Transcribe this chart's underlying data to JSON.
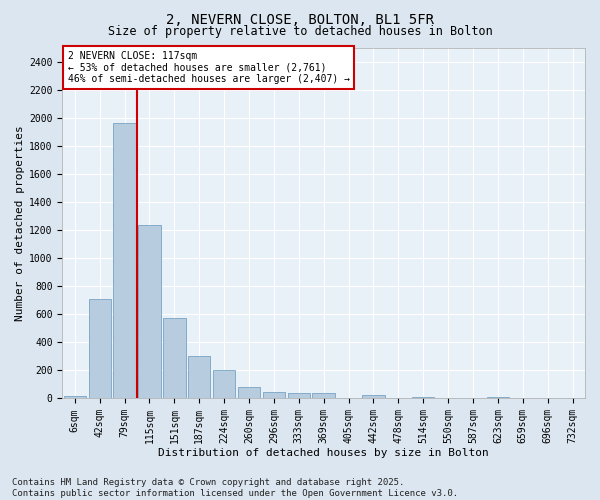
{
  "title_line1": "2, NEVERN CLOSE, BOLTON, BL1 5FR",
  "title_line2": "Size of property relative to detached houses in Bolton",
  "xlabel": "Distribution of detached houses by size in Bolton",
  "ylabel": "Number of detached properties",
  "categories": [
    "6sqm",
    "42sqm",
    "79sqm",
    "115sqm",
    "151sqm",
    "187sqm",
    "224sqm",
    "260sqm",
    "296sqm",
    "333sqm",
    "369sqm",
    "405sqm",
    "442sqm",
    "478sqm",
    "514sqm",
    "550sqm",
    "587sqm",
    "623sqm",
    "659sqm",
    "696sqm",
    "732sqm"
  ],
  "values": [
    15,
    710,
    1960,
    1235,
    575,
    305,
    205,
    80,
    45,
    35,
    35,
    0,
    25,
    0,
    12,
    0,
    0,
    12,
    0,
    0,
    0
  ],
  "bar_color": "#b8ccdf",
  "bar_edge_color": "#6699bb",
  "vline_color": "#cc0000",
  "annotation_text": "2 NEVERN CLOSE: 117sqm\n← 53% of detached houses are smaller (2,761)\n46% of semi-detached houses are larger (2,407) →",
  "annotation_box_facecolor": "#ffffff",
  "annotation_box_edgecolor": "#cc0000",
  "ylim": [
    0,
    2500
  ],
  "yticks": [
    0,
    200,
    400,
    600,
    800,
    1000,
    1200,
    1400,
    1600,
    1800,
    2000,
    2200,
    2400
  ],
  "footer_line1": "Contains HM Land Registry data © Crown copyright and database right 2025.",
  "footer_line2": "Contains public sector information licensed under the Open Government Licence v3.0.",
  "bg_color": "#dce6f0",
  "plot_bg_color": "#e8f0f8",
  "grid_color": "#ffffff",
  "title_fontsize": 10,
  "subtitle_fontsize": 8.5,
  "axis_label_fontsize": 8,
  "tick_fontsize": 7,
  "annotation_fontsize": 7,
  "footer_fontsize": 6.5
}
